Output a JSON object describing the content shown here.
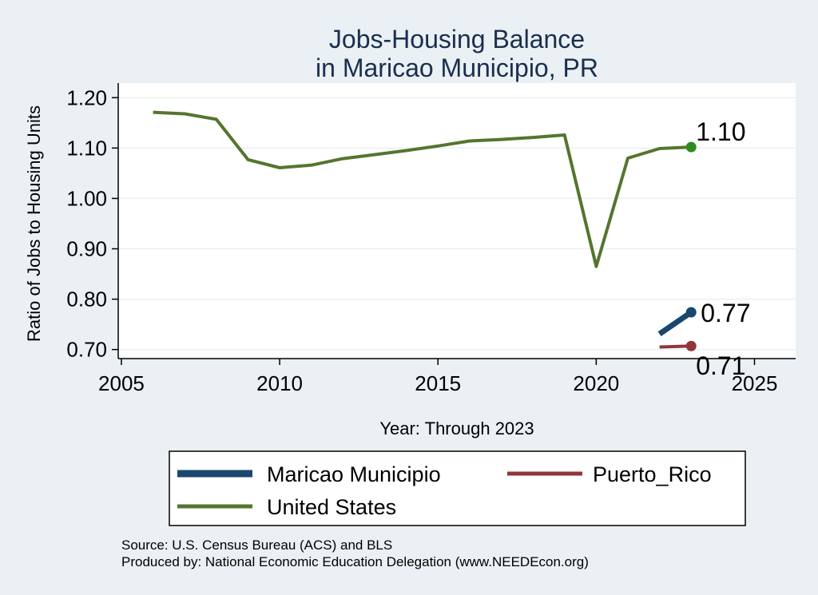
{
  "chart_data": {
    "type": "line",
    "title": [
      "Jobs-Housing Balance",
      "in Maricao Municipio, PR"
    ],
    "xlabel": "Year: Through 2023",
    "ylabel": "Ratio of Jobs to Housing Units",
    "xlim": [
      2004.9,
      2026.3
    ],
    "ylim": [
      0.682,
      1.229
    ],
    "xticks": [
      2005,
      2010,
      2015,
      2020,
      2025
    ],
    "yticks": [
      0.7,
      0.8,
      0.9,
      1.0,
      1.1,
      1.2
    ],
    "ytick_labels": [
      "0.70",
      "0.80",
      "0.90",
      "1.00",
      "1.10",
      "1.20"
    ],
    "grid": true,
    "legend_position": "bottom",
    "series": [
      {
        "name": "Maricao Municipio",
        "color": "#1a476f",
        "x": [
          2022,
          2023
        ],
        "y": [
          0.731,
          0.774
        ],
        "end_label": "0.77"
      },
      {
        "name": "Puerto_Rico",
        "color": "#90353b",
        "x": [
          2022,
          2023
        ],
        "y": [
          0.705,
          0.707
        ],
        "end_label": "0.71"
      },
      {
        "name": "United States",
        "color": "#55752f",
        "x": [
          2006,
          2007,
          2008,
          2009,
          2010,
          2011,
          2012,
          2013,
          2014,
          2015,
          2016,
          2017,
          2018,
          2019,
          2020,
          2021,
          2022,
          2023
        ],
        "y": [
          1.171,
          1.168,
          1.157,
          1.077,
          1.061,
          1.066,
          1.079,
          1.087,
          1.095,
          1.104,
          1.114,
          1.117,
          1.121,
          1.126,
          0.865,
          1.08,
          1.099,
          1.102
        ],
        "end_label": "1.10",
        "marker_color": "#2e8b22"
      }
    ],
    "legend": {
      "items": [
        {
          "label": "Maricao Municipio",
          "color": "#1a476f"
        },
        {
          "label": "Puerto_Rico",
          "color": "#90353b"
        },
        {
          "label": "United States",
          "color": "#55752f"
        }
      ]
    },
    "source_lines": [
      "Source: U.S. Census Bureau (ACS) and BLS",
      "Produced by: National Economic Education Delegation (www.NEEDEcon.org)"
    ]
  }
}
